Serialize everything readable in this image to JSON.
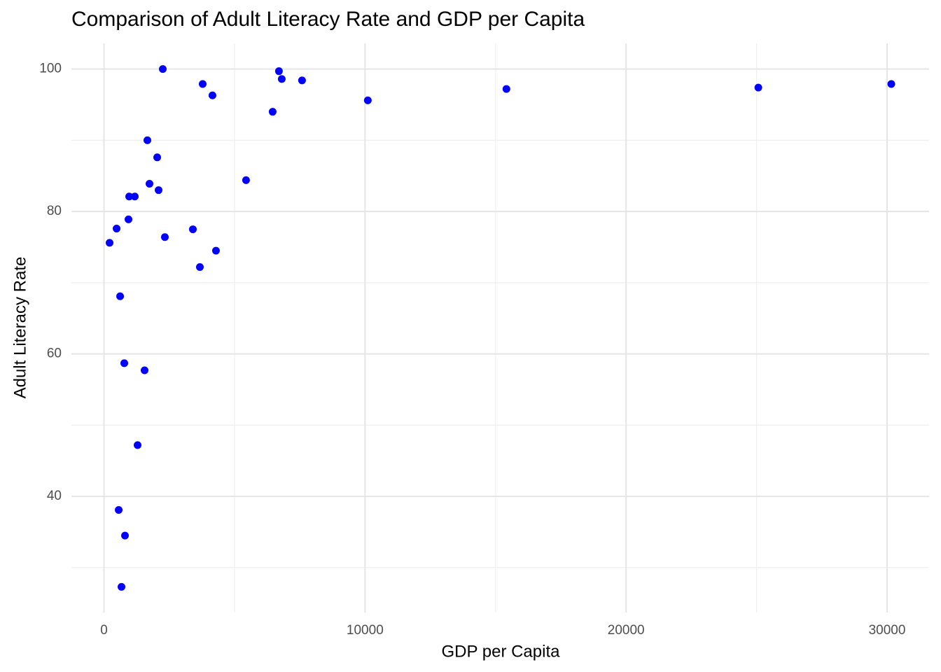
{
  "chart_data": {
    "type": "scatter",
    "title": "Comparison of Adult Literacy Rate and GDP per Capita",
    "x_label": "GDP per Capita",
    "y_label": "Adult Literacy Rate",
    "color": "#0000ff",
    "grid": true,
    "xlim": [
      -1248,
      31609
    ],
    "ylim": [
      23.7,
      103.6
    ],
    "xticks": [
      0,
      10000,
      20000,
      30000
    ],
    "yticks": [
      40,
      60,
      80,
      100
    ],
    "x_minor_ticks": [
      5000,
      15000,
      25000
    ],
    "y_minor_ticks": [
      30,
      50,
      70,
      90
    ],
    "x": [
      2252,
      3780,
      4155,
      6702,
      6810,
      7587,
      6461,
      10107,
      15416,
      25067,
      30161,
      1662,
      2038,
      5442,
      1743,
      2091,
      965,
      1180,
      938,
      483,
      3405,
      2332,
      214,
      4290,
      3673,
      617,
      777,
      1555,
      1287,
      563,
      804,
      670
    ],
    "values": [
      100,
      97.9,
      96.3,
      99.7,
      98.6,
      98.4,
      94.0,
      95.6,
      97.2,
      97.4,
      97.9,
      90.0,
      87.6,
      84.4,
      83.9,
      83.0,
      82.1,
      82.1,
      78.9,
      77.6,
      77.5,
      76.4,
      75.6,
      74.5,
      72.2,
      68.1,
      58.7,
      57.7,
      47.2,
      38.1,
      34.5,
      27.3
    ]
  }
}
